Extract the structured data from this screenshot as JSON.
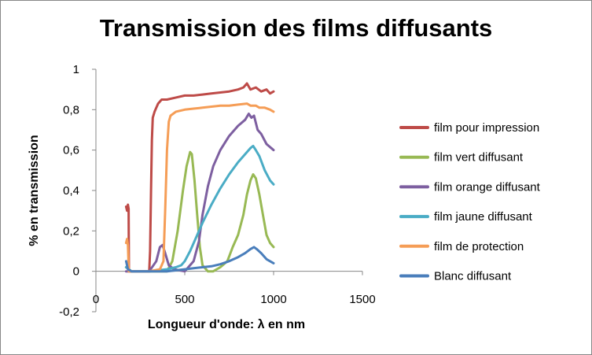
{
  "chart_data": {
    "type": "line",
    "title": "Transmission des films diffusants",
    "xlabel": "Longueur d'onde: λ en nm",
    "ylabel": "% en transmission",
    "xlim": [
      0,
      1500
    ],
    "ylim": [
      -0.2,
      1
    ],
    "xticks": [
      0,
      500,
      1000,
      1500
    ],
    "xtick_labels": [
      "0",
      "500",
      "1000",
      "1500"
    ],
    "yticks": [
      -0.2,
      0,
      0.2,
      0.4,
      0.6,
      0.8,
      1
    ],
    "ytick_labels": [
      "-0,2",
      "0",
      "0,2",
      "0,4",
      "0,6",
      "0,8",
      "1"
    ],
    "grid": false,
    "legend_position": "right",
    "series": [
      {
        "name": "film pour impression",
        "color": "#BE4B48",
        "points": [
          [
            170,
            0.32
          ],
          [
            175,
            0.3
          ],
          [
            180,
            0.33
          ],
          [
            184,
            0.31
          ],
          [
            186,
            0
          ],
          [
            300,
            0
          ],
          [
            305,
            0.1
          ],
          [
            310,
            0.4
          ],
          [
            315,
            0.65
          ],
          [
            320,
            0.76
          ],
          [
            330,
            0.79
          ],
          [
            340,
            0.81
          ],
          [
            350,
            0.83
          ],
          [
            370,
            0.85
          ],
          [
            400,
            0.85
          ],
          [
            450,
            0.86
          ],
          [
            500,
            0.87
          ],
          [
            550,
            0.87
          ],
          [
            600,
            0.875
          ],
          [
            650,
            0.88
          ],
          [
            700,
            0.885
          ],
          [
            750,
            0.89
          ],
          [
            800,
            0.9
          ],
          [
            830,
            0.91
          ],
          [
            850,
            0.93
          ],
          [
            870,
            0.9
          ],
          [
            900,
            0.91
          ],
          [
            930,
            0.89
          ],
          [
            960,
            0.9
          ],
          [
            980,
            0.88
          ],
          [
            1000,
            0.89
          ]
        ]
      },
      {
        "name": "film vert diffusant",
        "color": "#98B954",
        "points": [
          [
            170,
            0.02
          ],
          [
            200,
            0
          ],
          [
            300,
            0
          ],
          [
            350,
            0
          ],
          [
            400,
            0
          ],
          [
            430,
            0.05
          ],
          [
            460,
            0.2
          ],
          [
            490,
            0.4
          ],
          [
            510,
            0.52
          ],
          [
            530,
            0.59
          ],
          [
            540,
            0.58
          ],
          [
            555,
            0.45
          ],
          [
            570,
            0.28
          ],
          [
            585,
            0.12
          ],
          [
            600,
            0.03
          ],
          [
            630,
            0
          ],
          [
            660,
            0
          ],
          [
            700,
            0.02
          ],
          [
            740,
            0.05
          ],
          [
            770,
            0.12
          ],
          [
            800,
            0.18
          ],
          [
            830,
            0.28
          ],
          [
            850,
            0.38
          ],
          [
            870,
            0.45
          ],
          [
            885,
            0.48
          ],
          [
            900,
            0.46
          ],
          [
            920,
            0.38
          ],
          [
            940,
            0.28
          ],
          [
            960,
            0.18
          ],
          [
            980,
            0.14
          ],
          [
            1000,
            0.12
          ]
        ]
      },
      {
        "name": "film orange diffusant",
        "color": "#7D5FA0",
        "points": [
          [
            170,
            0
          ],
          [
            300,
            0
          ],
          [
            340,
            0.05
          ],
          [
            360,
            0.12
          ],
          [
            375,
            0.13
          ],
          [
            390,
            0.09
          ],
          [
            410,
            0.03
          ],
          [
            440,
            0.01
          ],
          [
            500,
            0
          ],
          [
            550,
            0.05
          ],
          [
            580,
            0.15
          ],
          [
            600,
            0.28
          ],
          [
            630,
            0.42
          ],
          [
            660,
            0.52
          ],
          [
            700,
            0.6
          ],
          [
            750,
            0.67
          ],
          [
            800,
            0.72
          ],
          [
            840,
            0.75
          ],
          [
            860,
            0.78
          ],
          [
            875,
            0.76
          ],
          [
            890,
            0.77
          ],
          [
            910,
            0.7
          ],
          [
            930,
            0.68
          ],
          [
            960,
            0.63
          ],
          [
            1000,
            0.6
          ]
        ]
      },
      {
        "name": "film jaune diffusant",
        "color": "#4AACC5",
        "points": [
          [
            170,
            0.02
          ],
          [
            200,
            0
          ],
          [
            300,
            0
          ],
          [
            400,
            0.01
          ],
          [
            450,
            0.02
          ],
          [
            480,
            0.03
          ],
          [
            500,
            0.05
          ],
          [
            530,
            0.1
          ],
          [
            560,
            0.16
          ],
          [
            600,
            0.24
          ],
          [
            650,
            0.33
          ],
          [
            700,
            0.41
          ],
          [
            750,
            0.48
          ],
          [
            800,
            0.54
          ],
          [
            850,
            0.59
          ],
          [
            870,
            0.61
          ],
          [
            885,
            0.62
          ],
          [
            900,
            0.6
          ],
          [
            920,
            0.57
          ],
          [
            950,
            0.5
          ],
          [
            980,
            0.45
          ],
          [
            1000,
            0.43
          ]
        ]
      },
      {
        "name": "film de protection",
        "color": "#F59D56",
        "points": [
          [
            170,
            0.14
          ],
          [
            175,
            0.16
          ],
          [
            180,
            0.13
          ],
          [
            185,
            0
          ],
          [
            300,
            0
          ],
          [
            360,
            0.01
          ],
          [
            380,
            0.05
          ],
          [
            390,
            0.3
          ],
          [
            400,
            0.6
          ],
          [
            410,
            0.74
          ],
          [
            420,
            0.77
          ],
          [
            450,
            0.79
          ],
          [
            500,
            0.8
          ],
          [
            550,
            0.805
          ],
          [
            600,
            0.81
          ],
          [
            650,
            0.815
          ],
          [
            700,
            0.82
          ],
          [
            750,
            0.82
          ],
          [
            800,
            0.825
          ],
          [
            850,
            0.83
          ],
          [
            870,
            0.82
          ],
          [
            900,
            0.82
          ],
          [
            920,
            0.81
          ],
          [
            950,
            0.81
          ],
          [
            980,
            0.8
          ],
          [
            1000,
            0.79
          ]
        ]
      },
      {
        "name": "Blanc diffusant",
        "color": "#4A7EBB",
        "points": [
          [
            170,
            0.05
          ],
          [
            180,
            0.01
          ],
          [
            200,
            0
          ],
          [
            300,
            0
          ],
          [
            400,
            0
          ],
          [
            500,
            0.01
          ],
          [
            550,
            0.015
          ],
          [
            600,
            0.02
          ],
          [
            650,
            0.025
          ],
          [
            700,
            0.035
          ],
          [
            750,
            0.05
          ],
          [
            800,
            0.07
          ],
          [
            840,
            0.09
          ],
          [
            870,
            0.11
          ],
          [
            890,
            0.12
          ],
          [
            905,
            0.11
          ],
          [
            930,
            0.09
          ],
          [
            960,
            0.06
          ],
          [
            1000,
            0.04
          ]
        ]
      }
    ]
  }
}
